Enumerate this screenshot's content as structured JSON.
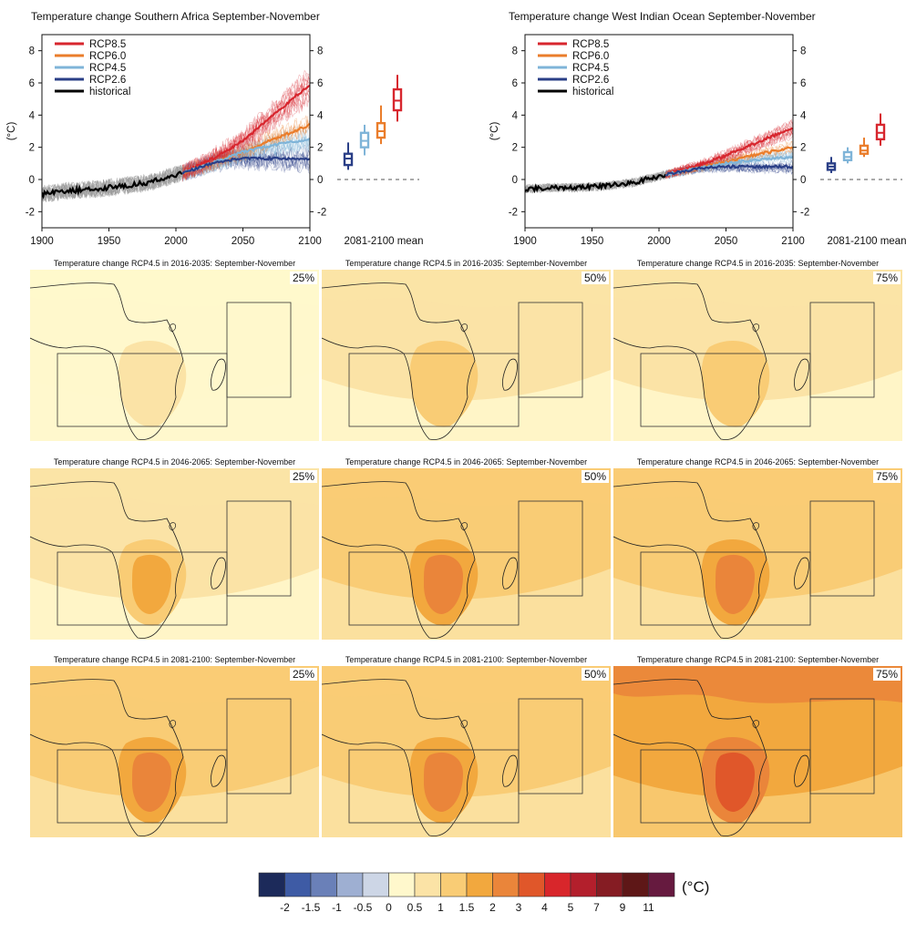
{
  "colors": {
    "rcp85": "#d7262e",
    "rcp60": "#ea7d2b",
    "rcp45": "#7fb4d8",
    "rcp26": "#2a3f87",
    "historical": "#000000",
    "colorbar": [
      "#1c2a5a",
      "#3e5ba5",
      "#6a80b8",
      "#9eafd2",
      "#cdd6e6",
      "#fff8cc",
      "#fbe3a6",
      "#f9cc75",
      "#f2a83e",
      "#ea853a",
      "#e0572a",
      "#d8262b",
      "#b31f2c",
      "#851c23",
      "#5e1717",
      "#661a3f"
    ]
  },
  "timeseries": [
    {
      "title": "Temperature change Southern Africa September-November",
      "ylabel": "(°C)",
      "boxplot_label": "2081-2100 mean"
    },
    {
      "title": "Temperature change West Indian Ocean September-November",
      "ylabel": "(°C)",
      "boxplot_label": "2081-2100 mean"
    }
  ],
  "legend": [
    "RCP8.5",
    "RCP6.0",
    "RCP4.5",
    "RCP2.6",
    "historical"
  ],
  "maps": {
    "rows": [
      {
        "title": "Temperature change RCP4.5 in 2016-2035: September-November",
        "levels": [
          "0.5",
          "1",
          "1"
        ]
      },
      {
        "title": "Temperature change RCP4.5 in 2046-2065: September-November",
        "levels": [
          "1",
          "1.5",
          "1.5"
        ]
      },
      {
        "title": "Temperature change RCP4.5 in 2081-2100: September-November",
        "levels": [
          "1.5",
          "1.5",
          "2"
        ]
      }
    ],
    "percentiles": [
      "25%",
      "50%",
      "75%"
    ]
  },
  "colorbar": {
    "labels": [
      "-2",
      "-1.5",
      "-1",
      "-0.5",
      "0",
      "0.5",
      "1",
      "1.5",
      "2",
      "3",
      "4",
      "5",
      "7",
      "9",
      "11"
    ],
    "unit": "(°C)"
  },
  "chart_data": [
    {
      "type": "line",
      "title": "Temperature change Southern Africa September-November",
      "ylabel": "(°C)",
      "xlim": [
        1900,
        2100
      ],
      "ylim": [
        -3,
        9
      ],
      "xticks": [
        1900,
        1950,
        2000,
        2050,
        2100
      ],
      "yticks": [
        -2,
        0,
        2,
        4,
        6,
        8
      ],
      "series": [
        {
          "name": "historical",
          "x": [
            1900,
            1920,
            1940,
            1960,
            1980,
            2000,
            2005
          ],
          "y": [
            -0.9,
            -0.7,
            -0.6,
            -0.4,
            -0.2,
            0.3,
            0.4
          ]
        },
        {
          "name": "RCP8.5",
          "x": [
            2005,
            2030,
            2050,
            2070,
            2100
          ],
          "y": [
            0.4,
            1.4,
            2.4,
            3.8,
            5.9
          ]
        },
        {
          "name": "RCP6.0",
          "x": [
            2005,
            2030,
            2050,
            2070,
            2100
          ],
          "y": [
            0.4,
            1.1,
            1.7,
            2.4,
            3.4
          ]
        },
        {
          "name": "RCP4.5",
          "x": [
            2005,
            2030,
            2050,
            2070,
            2100
          ],
          "y": [
            0.4,
            1.1,
            1.7,
            2.1,
            2.5
          ]
        },
        {
          "name": "RCP2.6",
          "x": [
            2005,
            2030,
            2050,
            2070,
            2100
          ],
          "y": [
            0.4,
            1.1,
            1.3,
            1.3,
            1.3
          ]
        }
      ],
      "boxplots_2081_2100": [
        {
          "name": "RCP2.6",
          "min": 0.6,
          "q1": 0.9,
          "median": 1.3,
          "q3": 1.6,
          "max": 2.3
        },
        {
          "name": "RCP4.5",
          "min": 1.5,
          "q1": 2.0,
          "median": 2.4,
          "q3": 2.9,
          "max": 3.4
        },
        {
          "name": "RCP6.0",
          "min": 2.2,
          "q1": 2.6,
          "median": 3.0,
          "q3": 3.5,
          "max": 4.6
        },
        {
          "name": "RCP8.5",
          "min": 3.6,
          "q1": 4.3,
          "median": 4.9,
          "q3": 5.6,
          "max": 6.5
        }
      ]
    },
    {
      "type": "line",
      "title": "Temperature change West Indian Ocean September-November",
      "ylabel": "(°C)",
      "xlim": [
        1900,
        2100
      ],
      "ylim": [
        -3,
        9
      ],
      "xticks": [
        1900,
        1950,
        2000,
        2050,
        2100
      ],
      "yticks": [
        -2,
        0,
        2,
        4,
        6,
        8
      ],
      "series": [
        {
          "name": "historical",
          "x": [
            1900,
            1920,
            1940,
            1960,
            1980,
            2000,
            2005
          ],
          "y": [
            -0.6,
            -0.5,
            -0.5,
            -0.4,
            -0.2,
            0.2,
            0.3
          ]
        },
        {
          "name": "RCP8.5",
          "x": [
            2005,
            2030,
            2050,
            2070,
            2100
          ],
          "y": [
            0.3,
            0.9,
            1.5,
            2.2,
            3.2
          ]
        },
        {
          "name": "RCP6.0",
          "x": [
            2005,
            2030,
            2050,
            2070,
            2100
          ],
          "y": [
            0.3,
            0.7,
            1.1,
            1.5,
            2.0
          ]
        },
        {
          "name": "RCP4.5",
          "x": [
            2005,
            2030,
            2050,
            2070,
            2100
          ],
          "y": [
            0.3,
            0.7,
            1.0,
            1.2,
            1.4
          ]
        },
        {
          "name": "RCP2.6",
          "x": [
            2005,
            2030,
            2050,
            2070,
            2100
          ],
          "y": [
            0.3,
            0.7,
            0.8,
            0.8,
            0.8
          ]
        }
      ],
      "boxplots_2081_2100": [
        {
          "name": "RCP2.6",
          "min": 0.4,
          "q1": 0.6,
          "median": 0.8,
          "q3": 1.0,
          "max": 1.4
        },
        {
          "name": "RCP4.5",
          "min": 1.0,
          "q1": 1.2,
          "median": 1.4,
          "q3": 1.7,
          "max": 2.0
        },
        {
          "name": "RCP6.0",
          "min": 1.4,
          "q1": 1.6,
          "median": 1.8,
          "q3": 2.1,
          "max": 2.6
        },
        {
          "name": "RCP8.5",
          "min": 2.1,
          "q1": 2.5,
          "median": 2.9,
          "q3": 3.4,
          "max": 4.1
        }
      ]
    }
  ]
}
